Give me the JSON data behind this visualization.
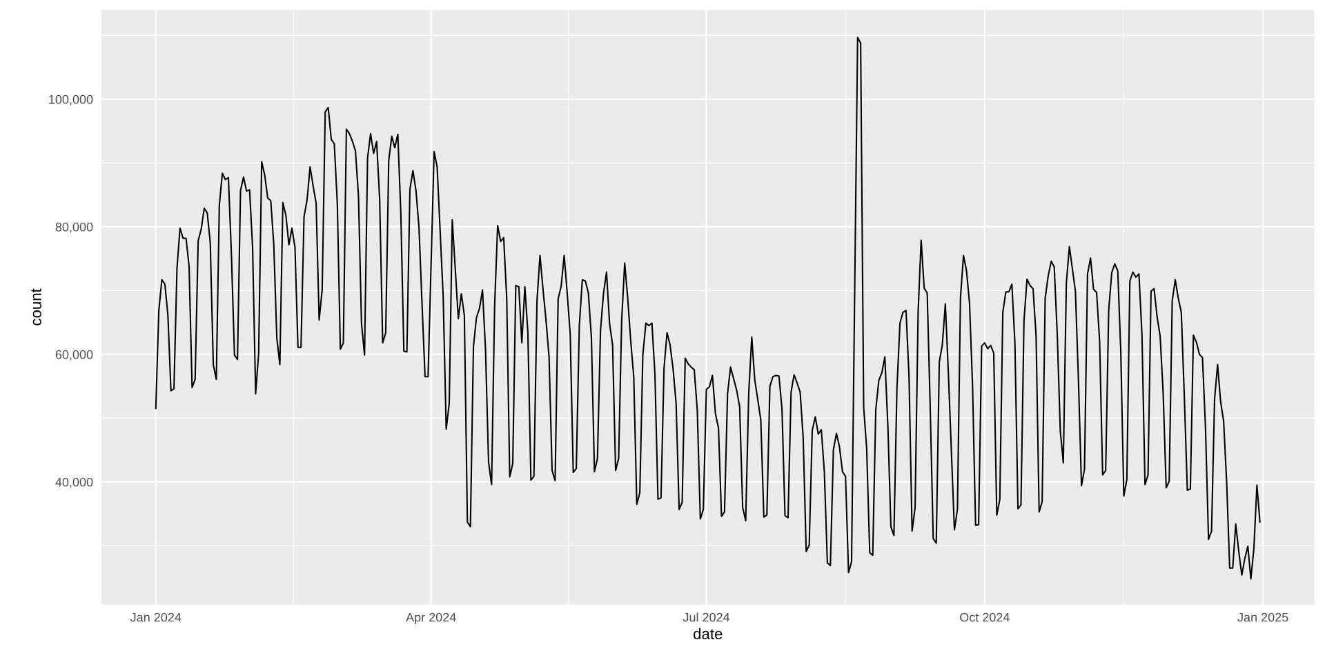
{
  "chart_data": {
    "type": "line",
    "xlabel": "date",
    "ylabel": "count",
    "color": "#000000",
    "grid": true,
    "xlim": [
      "2023-12-14",
      "2025-01-18"
    ],
    "ylim": [
      20800,
      114000
    ],
    "xticks": [
      {
        "value": "2024-01-01",
        "label": "Jan 2024"
      },
      {
        "value": "2024-02-15T12:00",
        "label": null
      },
      {
        "value": "2024-04-01",
        "label": "Apr 2024"
      },
      {
        "value": "2024-05-16T12:00",
        "label": null
      },
      {
        "value": "2024-07-01",
        "label": "Jul 2024"
      },
      {
        "value": "2024-08-16",
        "label": null
      },
      {
        "value": "2024-10-01",
        "label": "Oct 2024"
      },
      {
        "value": "2024-11-16",
        "label": null
      },
      {
        "value": "2025-01-01",
        "label": "Jan 2025"
      }
    ],
    "yticks": [
      {
        "value": 30000,
        "label": null
      },
      {
        "value": 40000,
        "label": "40,000"
      },
      {
        "value": 50000,
        "label": null
      },
      {
        "value": 60000,
        "label": "60,000"
      },
      {
        "value": 70000,
        "label": null
      },
      {
        "value": 80000,
        "label": "80,000"
      },
      {
        "value": 90000,
        "label": null
      },
      {
        "value": 100000,
        "label": "100,000"
      },
      {
        "value": 110000,
        "label": null
      }
    ],
    "x": [
      "2024-01-01",
      "2024-01-02",
      "2024-01-03",
      "2024-01-04",
      "2024-01-05",
      "2024-01-06",
      "2024-01-07",
      "2024-01-08",
      "2024-01-09",
      "2024-01-10",
      "2024-01-11",
      "2024-01-12",
      "2024-01-13",
      "2024-01-14",
      "2024-01-15",
      "2024-01-16",
      "2024-01-17",
      "2024-01-18",
      "2024-01-19",
      "2024-01-20",
      "2024-01-21",
      "2024-01-22",
      "2024-01-23",
      "2024-01-24",
      "2024-01-25",
      "2024-01-26",
      "2024-01-27",
      "2024-01-28",
      "2024-01-29",
      "2024-01-30",
      "2024-01-31",
      "2024-02-01",
      "2024-02-02",
      "2024-02-03",
      "2024-02-04",
      "2024-02-05",
      "2024-02-06",
      "2024-02-07",
      "2024-02-08",
      "2024-02-09",
      "2024-02-10",
      "2024-02-11",
      "2024-02-12",
      "2024-02-13",
      "2024-02-14",
      "2024-02-15",
      "2024-02-16",
      "2024-02-17",
      "2024-02-18",
      "2024-02-19",
      "2024-02-20",
      "2024-02-21",
      "2024-02-22",
      "2024-02-23",
      "2024-02-24",
      "2024-02-25",
      "2024-02-26",
      "2024-02-27",
      "2024-02-28",
      "2024-02-29",
      "2024-03-01",
      "2024-03-02",
      "2024-03-03",
      "2024-03-04",
      "2024-03-05",
      "2024-03-06",
      "2024-03-07",
      "2024-03-08",
      "2024-03-09",
      "2024-03-10",
      "2024-03-11",
      "2024-03-12",
      "2024-03-13",
      "2024-03-14",
      "2024-03-15",
      "2024-03-16",
      "2024-03-17",
      "2024-03-18",
      "2024-03-19",
      "2024-03-20",
      "2024-03-21",
      "2024-03-22",
      "2024-03-23",
      "2024-03-24",
      "2024-03-25",
      "2024-03-26",
      "2024-03-27",
      "2024-03-28",
      "2024-03-29",
      "2024-03-30",
      "2024-03-31",
      "2024-04-02",
      "2024-04-03",
      "2024-04-05",
      "2024-04-06",
      "2024-04-07",
      "2024-04-08",
      "2024-04-10",
      "2024-04-11",
      "2024-04-12",
      "2024-04-13",
      "2024-04-14",
      "2024-04-15",
      "2024-04-16",
      "2024-04-17",
      "2024-04-18",
      "2024-04-19",
      "2024-04-20",
      "2024-04-21",
      "2024-04-22",
      "2024-04-23",
      "2024-04-24",
      "2024-04-25",
      "2024-04-26",
      "2024-04-27",
      "2024-04-28",
      "2024-04-29",
      "2024-04-30",
      "2024-05-01",
      "2024-05-02",
      "2024-05-03",
      "2024-05-04",
      "2024-05-05",
      "2024-05-06",
      "2024-05-07",
      "2024-05-08",
      "2024-05-09",
      "2024-05-10",
      "2024-05-11",
      "2024-05-12",
      "2024-05-13",
      "2024-05-14",
      "2024-05-15",
      "2024-05-16",
      "2024-05-17",
      "2024-05-18",
      "2024-05-19",
      "2024-05-20",
      "2024-05-21",
      "2024-05-22",
      "2024-05-23",
      "2024-05-24",
      "2024-05-25",
      "2024-05-26",
      "2024-05-27",
      "2024-05-28",
      "2024-05-29",
      "2024-05-30",
      "2024-05-31",
      "2024-06-01",
      "2024-06-02",
      "2024-06-03",
      "2024-06-04",
      "2024-06-05",
      "2024-06-06",
      "2024-06-07",
      "2024-06-08",
      "2024-06-09",
      "2024-06-10",
      "2024-06-11",
      "2024-06-12",
      "2024-06-13",
      "2024-06-14",
      "2024-06-15",
      "2024-06-16",
      "2024-06-17",
      "2024-06-18",
      "2024-06-19",
      "2024-06-20",
      "2024-06-21",
      "2024-06-22",
      "2024-06-23",
      "2024-06-24",
      "2024-06-25",
      "2024-06-26",
      "2024-06-27",
      "2024-06-28",
      "2024-06-29",
      "2024-06-30",
      "2024-07-01",
      "2024-07-02",
      "2024-07-03",
      "2024-07-04",
      "2024-07-05",
      "2024-07-06",
      "2024-07-07",
      "2024-07-08",
      "2024-07-09",
      "2024-07-10",
      "2024-07-11",
      "2024-07-12",
      "2024-07-13",
      "2024-07-14",
      "2024-07-15",
      "2024-07-16",
      "2024-07-17",
      "2024-07-18",
      "2024-07-19",
      "2024-07-20",
      "2024-07-21",
      "2024-07-22",
      "2024-07-23",
      "2024-07-24",
      "2024-07-25",
      "2024-07-26",
      "2024-07-27",
      "2024-07-28",
      "2024-07-29",
      "2024-07-30",
      "2024-07-31",
      "2024-08-01",
      "2024-08-02",
      "2024-08-03",
      "2024-08-04",
      "2024-08-05",
      "2024-08-06",
      "2024-08-07",
      "2024-08-08",
      "2024-08-09",
      "2024-08-10",
      "2024-08-11",
      "2024-08-12",
      "2024-08-13",
      "2024-08-14",
      "2024-08-15",
      "2024-08-16",
      "2024-08-17",
      "2024-08-18",
      "2024-08-20",
      "2024-08-21",
      "2024-08-22",
      "2024-08-23",
      "2024-08-24",
      "2024-08-25",
      "2024-08-26",
      "2024-08-27",
      "2024-08-28",
      "2024-08-29",
      "2024-08-30",
      "2024-08-31",
      "2024-09-01",
      "2024-09-02",
      "2024-09-03",
      "2024-09-04",
      "2024-09-05",
      "2024-09-06",
      "2024-09-07",
      "2024-09-08",
      "2024-09-09",
      "2024-09-10",
      "2024-09-11",
      "2024-09-12",
      "2024-09-13",
      "2024-09-14",
      "2024-09-15",
      "2024-09-16",
      "2024-09-17",
      "2024-09-18",
      "2024-09-19",
      "2024-09-21",
      "2024-09-22",
      "2024-09-23",
      "2024-09-24",
      "2024-09-25",
      "2024-09-26",
      "2024-09-27",
      "2024-09-28",
      "2024-09-29",
      "2024-09-30",
      "2024-10-01",
      "2024-10-02",
      "2024-10-03",
      "2024-10-04",
      "2024-10-05",
      "2024-10-06",
      "2024-10-07",
      "2024-10-08",
      "2024-10-09",
      "2024-10-10",
      "2024-10-11",
      "2024-10-12",
      "2024-10-13",
      "2024-10-14",
      "2024-10-15",
      "2024-10-16",
      "2024-10-17",
      "2024-10-18",
      "2024-10-19",
      "2024-10-20",
      "2024-10-21",
      "2024-10-22",
      "2024-10-23",
      "2024-10-24",
      "2024-10-25",
      "2024-10-26",
      "2024-10-27",
      "2024-10-28",
      "2024-10-29",
      "2024-10-30",
      "2024-10-31",
      "2024-11-01",
      "2024-11-02",
      "2024-11-03",
      "2024-11-04",
      "2024-11-05",
      "2024-11-06",
      "2024-11-07",
      "2024-11-08",
      "2024-11-09",
      "2024-11-10",
      "2024-11-11",
      "2024-11-12",
      "2024-11-13",
      "2024-11-14",
      "2024-11-15",
      "2024-11-16",
      "2024-11-17",
      "2024-11-18",
      "2024-11-19",
      "2024-11-20",
      "2024-11-21",
      "2024-11-22",
      "2024-11-23",
      "2024-11-24",
      "2024-11-25",
      "2024-11-26",
      "2024-11-27",
      "2024-11-28",
      "2024-11-29",
      "2024-11-30",
      "2024-12-01",
      "2024-12-02",
      "2024-12-03",
      "2024-12-04",
      "2024-12-05",
      "2024-12-06",
      "2024-12-07",
      "2024-12-08",
      "2024-12-09",
      "2024-12-10",
      "2024-12-11",
      "2024-12-12",
      "2024-12-13",
      "2024-12-14",
      "2024-12-15",
      "2024-12-16",
      "2024-12-17",
      "2024-12-18",
      "2024-12-19",
      "2024-12-20",
      "2024-12-21",
      "2024-12-22",
      "2024-12-23",
      "2024-12-24",
      "2024-12-25",
      "2024-12-26",
      "2024-12-27",
      "2024-12-28",
      "2024-12-29",
      "2024-12-30",
      "2024-12-31"
    ],
    "values": [
      51500,
      66900,
      71700,
      71000,
      66100,
      54300,
      54600,
      73500,
      79800,
      78200,
      78200,
      73800,
      54800,
      56100,
      77800,
      79600,
      82900,
      82200,
      77500,
      58400,
      56100,
      83400,
      88400,
      87400,
      87700,
      75600,
      59900,
      59200,
      85700,
      87800,
      85600,
      85800,
      76700,
      53800,
      60200,
      90200,
      88100,
      84500,
      84100,
      77200,
      62600,
      58400,
      83800,
      81800,
      77200,
      79800,
      76800,
      61100,
      61100,
      81600,
      84200,
      89400,
      86400,
      83700,
      65400,
      70200,
      98000,
      98700,
      93700,
      93000,
      83700,
      60800,
      61800,
      95300,
      94600,
      93400,
      91900,
      84800,
      64800,
      59900,
      90800,
      94600,
      91500,
      93400,
      84300,
      61800,
      63400,
      90400,
      94200,
      92400,
      94500,
      82100,
      60500,
      60400,
      85900,
      88800,
      85700,
      79900,
      68000,
      56500,
      56500,
      91800,
      89400,
      69100,
      48300,
      52300,
      81100,
      65600,
      69500,
      66100,
      33700,
      33000,
      61200,
      65800,
      67200,
      70100,
      60700,
      43100,
      39600,
      67500,
      80200,
      77700,
      78300,
      68800,
      40800,
      42900,
      70800,
      70600,
      61800,
      70600,
      63400,
      40300,
      40900,
      68300,
      75500,
      70200,
      65300,
      59600,
      41800,
      40200,
      68700,
      70700,
      75500,
      69600,
      63100,
      41500,
      42100,
      64500,
      71700,
      71500,
      69600,
      62600,
      41600,
      43700,
      63700,
      69600,
      72900,
      64800,
      61500,
      41800,
      43700,
      65300,
      74300,
      68800,
      62100,
      56400,
      36500,
      38300,
      59900,
      64900,
      64500,
      64900,
      56900,
      37300,
      37500,
      57800,
      63400,
      61500,
      57700,
      52300,
      35700,
      36800,
      59400,
      58500,
      58000,
      57600,
      51200,
      34200,
      35700,
      54500,
      54900,
      56700,
      50700,
      48500,
      34600,
      35300,
      53800,
      58000,
      56200,
      54400,
      51800,
      36000,
      33900,
      53800,
      62700,
      56000,
      52900,
      49700,
      34500,
      34800,
      55000,
      56500,
      56700,
      56600,
      51400,
      34700,
      34400,
      54100,
      56800,
      55500,
      54100,
      47000,
      29100,
      30100,
      48100,
      50200,
      47500,
      48200,
      41600,
      27300,
      26900,
      45100,
      47600,
      45500,
      41600,
      40900,
      25800,
      27500,
      109700,
      108800,
      51700,
      45200,
      28900,
      28500,
      51300,
      55900,
      57100,
      59600,
      48800,
      33000,
      31600,
      54700,
      64900,
      66600,
      66900,
      56500,
      32300,
      36000,
      66600,
      77900,
      70400,
      69600,
      51700,
      31100,
      30400,
      58800,
      61500,
      67900,
      57100,
      32500,
      35700,
      68900,
      75500,
      73100,
      68000,
      55000,
      33200,
      33300,
      61300,
      61800,
      60900,
      61400,
      60200,
      34800,
      37200,
      66600,
      69800,
      69800,
      71000,
      61800,
      35800,
      36400,
      65300,
      71800,
      70800,
      70300,
      62900,
      35300,
      36900,
      68800,
      72300,
      74600,
      73700,
      63100,
      48000,
      43000,
      71200,
      76900,
      73400,
      69900,
      56000,
      39400,
      42000,
      72600,
      75100,
      70200,
      69700,
      62100,
      41100,
      41800,
      66900,
      72800,
      74200,
      73100,
      60400,
      37800,
      40400,
      71500,
      72900,
      72100,
      72600,
      63100,
      39600,
      41100,
      69900,
      70300,
      65900,
      62900,
      54000,
      39100,
      40100,
      68400,
      71700,
      68800,
      66600,
      53400,
      38700,
      38900,
      63000,
      61900,
      60000,
      59500,
      48500,
      31000,
      32300,
      53000,
      58400,
      52600,
      49500,
      39900,
      26500,
      26500,
      33400,
      29100,
      25400,
      28000,
      29900,
      24800,
      29600,
      39500,
      33700
    ]
  }
}
